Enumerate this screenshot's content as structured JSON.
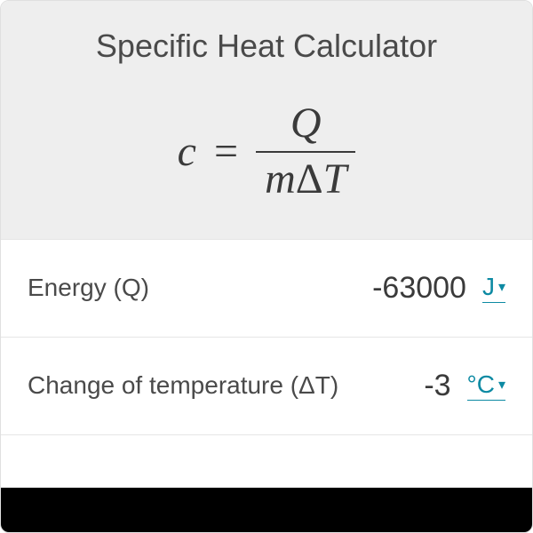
{
  "colors": {
    "header_bg": "#eeeeee",
    "card_bg": "#ffffff",
    "border": "#e6e6e6",
    "text": "#4a4a4a",
    "value_text": "#3a3a3a",
    "accent": "#0d8aa3",
    "bottombar": "#000000"
  },
  "title": "Specific Heat Calculator",
  "formula": {
    "lhs": "c",
    "equals": "=",
    "numerator": "Q",
    "denominator_delta": "Δ",
    "denominator_m": "m",
    "denominator_T": "T"
  },
  "rows": [
    {
      "label": "Energy (Q)",
      "value": "-63000",
      "unit": "J"
    },
    {
      "label": "Change of temperature (ΔT)",
      "value": "-3",
      "unit": "°C"
    }
  ],
  "caret_glyph": "▾"
}
